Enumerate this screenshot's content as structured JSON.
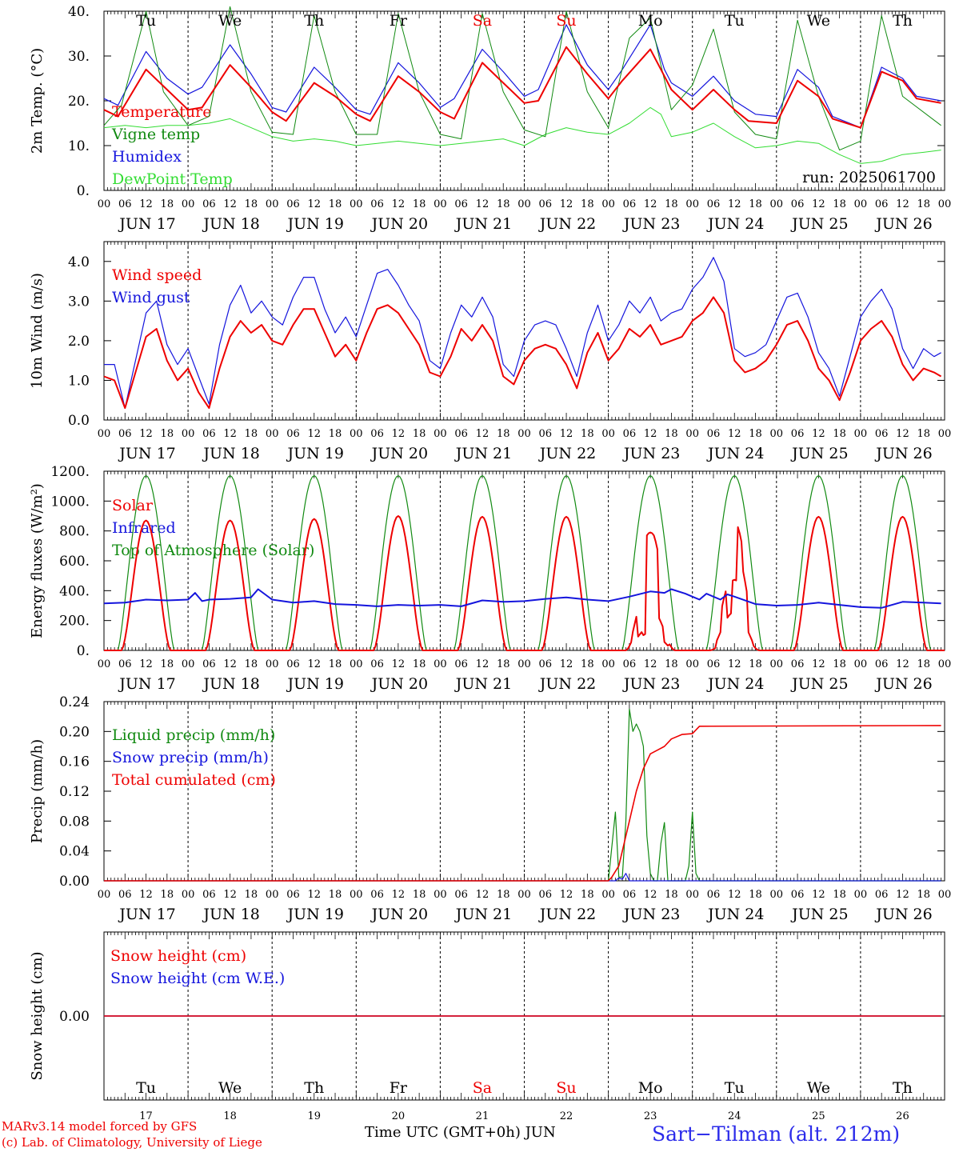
{
  "colors": {
    "red": "#ee0000",
    "green": "#118a11",
    "blue": "#1515dd",
    "light_green": "#33dd33",
    "black": "#000000"
  },
  "days": [
    "Tu",
    "We",
    "Th",
    "Fr",
    "Sa",
    "Su",
    "Mo",
    "Tu",
    "We",
    "Th"
  ],
  "weekend_days": [
    "Sa",
    "Su"
  ],
  "dates": [
    "JUN 17",
    "JUN 18",
    "JUN 19",
    "JUN 20",
    "JUN 21",
    "JUN 22",
    "JUN 23",
    "JUN 24",
    "JUN 25",
    "JUN 26"
  ],
  "date_numbers": [
    "17",
    "18",
    "19",
    "20",
    "21",
    "22",
    "23",
    "24",
    "25",
    "26"
  ],
  "hour_ticks": [
    "00",
    "06",
    "12",
    "18"
  ],
  "run_label": "run: 2025061700",
  "footer": {
    "credit_line1": "MARv3.14 model forced by GFS",
    "credit_line2": "(c) Lab. of Climatology, University of Liege",
    "x_title": "Time UTC (GMT+0h) JUN",
    "station": "Sart−Tilman (alt. 212m)"
  },
  "chart_data": [
    {
      "type": "line",
      "ylabel": "2m Temp. (°C)",
      "ylim": [
        0,
        40
      ],
      "yticks": [
        "0.",
        "10.",
        "20.",
        "30.",
        "40."
      ],
      "x_unit": "hours since JUN 17 00 UTC",
      "legend": [
        "Temperature",
        "Vigne temp",
        "Humidex",
        "DewPoint Temp"
      ],
      "series": [
        {
          "name": "Temperature",
          "color": "red",
          "x": [
            0,
            4,
            12,
            18,
            24,
            28,
            36,
            42,
            48,
            52,
            60,
            66,
            72,
            76,
            84,
            90,
            96,
            100,
            108,
            114,
            120,
            124,
            132,
            138,
            144,
            148,
            156,
            159,
            162,
            168,
            174,
            180,
            184,
            192,
            198,
            204,
            208,
            216,
            222,
            228,
            232,
            239
          ],
          "y": [
            18,
            16.5,
            27,
            22.5,
            18,
            18.5,
            28,
            23,
            17.5,
            15.5,
            24,
            21,
            17,
            15.5,
            25.5,
            22,
            17.5,
            16,
            28.5,
            24,
            19.5,
            20,
            32,
            26,
            20.5,
            24.5,
            31.5,
            27,
            22.5,
            18,
            22.5,
            18,
            15.5,
            15,
            24.5,
            21,
            16,
            14,
            26.5,
            24.5,
            20.5,
            19.5
          ]
        },
        {
          "name": "Vigne temp",
          "color": "green",
          "x": [
            0,
            5,
            12,
            17,
            24,
            30,
            36,
            42,
            48,
            54,
            60,
            66,
            72,
            78,
            84,
            90,
            96,
            102,
            108,
            114,
            120,
            126,
            132,
            138,
            144,
            150,
            156,
            159,
            162,
            168,
            174,
            180,
            186,
            192,
            198,
            204,
            210,
            216,
            222,
            228,
            239
          ],
          "y": [
            14.5,
            19,
            40,
            22,
            14.5,
            16.5,
            41,
            22,
            13,
            12.5,
            39,
            22,
            12.5,
            12.5,
            39.5,
            22,
            12.5,
            11.5,
            39.5,
            22,
            13.5,
            12,
            40,
            22,
            14,
            34,
            38.5,
            28,
            18,
            23.5,
            36,
            17.5,
            12.5,
            11.5,
            38,
            21,
            9,
            11,
            39,
            21,
            14.5
          ]
        },
        {
          "name": "Humidex",
          "color": "blue",
          "x": [
            0,
            4,
            12,
            18,
            24,
            28,
            36,
            42,
            48,
            52,
            60,
            66,
            72,
            76,
            84,
            90,
            96,
            100,
            108,
            114,
            120,
            124,
            132,
            138,
            144,
            148,
            156,
            160,
            162,
            168,
            174,
            180,
            186,
            192,
            198,
            204,
            208,
            216,
            222,
            228,
            232,
            239
          ],
          "y": [
            20.5,
            19,
            31,
            25,
            21.5,
            23,
            32.5,
            26,
            18.5,
            17.5,
            27.5,
            23,
            18,
            17,
            28.5,
            24,
            18.5,
            20.5,
            31.5,
            26.5,
            21,
            22.5,
            37,
            28,
            22.5,
            27,
            37,
            27,
            24,
            21,
            25.5,
            20,
            17,
            16.5,
            27,
            23,
            16.5,
            14,
            27.5,
            25,
            21,
            20
          ]
        },
        {
          "name": "DewPoint Temp",
          "color": "light_green",
          "x": [
            0,
            6,
            12,
            18,
            24,
            30,
            36,
            42,
            48,
            54,
            60,
            66,
            72,
            78,
            84,
            90,
            96,
            102,
            108,
            114,
            120,
            126,
            132,
            138,
            144,
            150,
            156,
            159,
            162,
            168,
            174,
            180,
            186,
            192,
            198,
            204,
            210,
            216,
            222,
            228,
            234,
            239
          ],
          "y": [
            14,
            14.5,
            14,
            14.5,
            14.5,
            15,
            16,
            14,
            12,
            11,
            11.5,
            11,
            10,
            10.5,
            11,
            10.5,
            10,
            10.5,
            11,
            11.5,
            10,
            12.5,
            14,
            13,
            12.5,
            15,
            18.5,
            17,
            12,
            13,
            15,
            12,
            9.5,
            10,
            11,
            10.5,
            8,
            6,
            6.5,
            8,
            8.5,
            9
          ]
        }
      ]
    },
    {
      "type": "line",
      "ylabel": "10m Wind (m/s)",
      "ylim": [
        0,
        4.5
      ],
      "yticks": [
        "0.0",
        "1.0",
        "2.0",
        "3.0",
        "4.0"
      ],
      "legend": [
        "Wind speed",
        "Wind gust"
      ],
      "series": [
        {
          "name": "Wind speed",
          "color": "red",
          "x": [
            0,
            3,
            6,
            9,
            12,
            15,
            18,
            21,
            24,
            27,
            30,
            33,
            36,
            39,
            42,
            45,
            48,
            51,
            54,
            57,
            60,
            63,
            66,
            69,
            72,
            75,
            78,
            81,
            84,
            87,
            90,
            93,
            96,
            99,
            102,
            105,
            108,
            111,
            114,
            117,
            120,
            123,
            126,
            129,
            132,
            135,
            138,
            141,
            144,
            147,
            150,
            153,
            156,
            159,
            162,
            165,
            168,
            171,
            174,
            177,
            180,
            183,
            186,
            189,
            192,
            195,
            198,
            201,
            204,
            207,
            210,
            213,
            216,
            219,
            222,
            225,
            228,
            231,
            234,
            237,
            239
          ],
          "y": [
            1.1,
            1.0,
            0.3,
            1.2,
            2.1,
            2.3,
            1.5,
            1.0,
            1.3,
            0.7,
            0.3,
            1.3,
            2.1,
            2.5,
            2.2,
            2.4,
            2.0,
            1.9,
            2.4,
            2.8,
            2.8,
            2.2,
            1.6,
            1.9,
            1.5,
            2.2,
            2.8,
            2.9,
            2.7,
            2.3,
            1.9,
            1.2,
            1.1,
            1.6,
            2.3,
            2.0,
            2.4,
            2.0,
            1.1,
            0.9,
            1.5,
            1.8,
            1.9,
            1.8,
            1.4,
            0.8,
            1.7,
            2.2,
            1.5,
            1.8,
            2.3,
            2.1,
            2.4,
            1.9,
            2.0,
            2.1,
            2.5,
            2.7,
            3.1,
            2.7,
            1.5,
            1.2,
            1.3,
            1.5,
            1.9,
            2.4,
            2.5,
            2.0,
            1.3,
            1.0,
            0.5,
            1.2,
            2.0,
            2.3,
            2.5,
            2.1,
            1.4,
            1.0,
            1.3,
            1.2,
            1.1
          ]
        },
        {
          "name": "Wind gust",
          "color": "blue",
          "x": [
            0,
            3,
            6,
            9,
            12,
            15,
            18,
            21,
            24,
            27,
            30,
            33,
            36,
            39,
            42,
            45,
            48,
            51,
            54,
            57,
            60,
            63,
            66,
            69,
            72,
            75,
            78,
            81,
            84,
            87,
            90,
            93,
            96,
            99,
            102,
            105,
            108,
            111,
            114,
            117,
            120,
            123,
            126,
            129,
            132,
            135,
            138,
            141,
            144,
            147,
            150,
            153,
            156,
            159,
            162,
            165,
            168,
            171,
            174,
            177,
            180,
            183,
            186,
            189,
            192,
            195,
            198,
            201,
            204,
            207,
            210,
            213,
            216,
            219,
            222,
            225,
            228,
            231,
            234,
            237,
            239
          ],
          "y": [
            1.4,
            1.4,
            0.3,
            1.5,
            2.7,
            3.0,
            1.9,
            1.4,
            1.8,
            1.1,
            0.4,
            1.9,
            2.9,
            3.4,
            2.7,
            3.0,
            2.6,
            2.4,
            3.1,
            3.6,
            3.6,
            2.8,
            2.2,
            2.6,
            2.1,
            2.9,
            3.7,
            3.8,
            3.4,
            2.9,
            2.5,
            1.5,
            1.3,
            2.2,
            2.9,
            2.6,
            3.1,
            2.6,
            1.4,
            1.1,
            2.0,
            2.4,
            2.5,
            2.4,
            1.8,
            1.1,
            2.2,
            2.9,
            2.0,
            2.4,
            3.0,
            2.7,
            3.1,
            2.5,
            2.7,
            2.8,
            3.3,
            3.6,
            4.1,
            3.5,
            1.8,
            1.6,
            1.7,
            1.9,
            2.5,
            3.1,
            3.2,
            2.6,
            1.7,
            1.3,
            0.6,
            1.6,
            2.6,
            3.0,
            3.3,
            2.8,
            1.8,
            1.3,
            1.8,
            1.6,
            1.7
          ]
        }
      ]
    },
    {
      "type": "line",
      "ylabel": "Energy fluxes (W/m²)",
      "ylim": [
        0,
        1200
      ],
      "yticks": [
        "0.",
        "200.",
        "400.",
        "600.",
        "800.",
        "1000.",
        "1200."
      ],
      "legend": [
        "Solar",
        "Infrared",
        "Top of Atmosphere (Solar)"
      ],
      "solar_peaks": [
        870,
        870,
        880,
        900,
        895,
        895,
        800,
        860,
        895,
        895
      ],
      "toa_peak": 1170,
      "infrared": {
        "x": [
          0,
          6,
          12,
          18,
          24,
          26,
          28,
          30,
          36,
          42,
          44,
          48,
          54,
          60,
          66,
          72,
          78,
          84,
          90,
          96,
          102,
          108,
          114,
          120,
          126,
          132,
          138,
          144,
          150,
          156,
          160,
          162,
          166,
          168,
          170,
          172,
          174,
          176,
          178,
          180,
          186,
          192,
          198,
          204,
          210,
          216,
          222,
          228,
          234,
          239
        ],
        "y": [
          315,
          320,
          340,
          335,
          340,
          385,
          330,
          340,
          345,
          355,
          410,
          340,
          320,
          330,
          310,
          305,
          295,
          305,
          300,
          305,
          295,
          335,
          325,
          330,
          345,
          355,
          340,
          330,
          360,
          395,
          385,
          410,
          380,
          360,
          340,
          380,
          360,
          340,
          375,
          360,
          310,
          300,
          305,
          320,
          305,
          290,
          285,
          325,
          320,
          315
        ]
      }
    },
    {
      "type": "line",
      "ylabel": "Precip (mm/h)",
      "ylim": [
        0,
        0.24
      ],
      "yticks": [
        "0.00",
        "0.04",
        "0.08",
        "0.12",
        "0.16",
        "0.20",
        "0.24"
      ],
      "legend": [
        "Liquid precip (mm/h)",
        "Snow precip (mm/h)",
        "Total cumulated (cm)"
      ],
      "series": [
        {
          "name": "Liquid precip (mm/h)",
          "color": "green",
          "x": [
            0,
            143,
            144,
            146,
            147,
            148,
            149,
            150,
            151,
            152,
            153,
            154,
            155,
            156,
            157,
            158,
            159,
            160,
            161,
            162,
            163,
            164,
            165,
            166,
            167,
            168,
            169,
            170,
            171,
            172,
            173,
            174,
            239
          ],
          "y": [
            0,
            0,
            0,
            0.092,
            0.005,
            0.005,
            0.08,
            0.23,
            0.2,
            0.21,
            0.2,
            0.18,
            0.06,
            0.01,
            0.0,
            0.0,
            0.05,
            0.078,
            0.0,
            0.0,
            0.0,
            0.0,
            0.0,
            0.0,
            0.02,
            0.092,
            0.01,
            0,
            0,
            0,
            0,
            0,
            0
          ]
        },
        {
          "name": "Snow precip (mm/h)",
          "color": "blue",
          "x": [
            0,
            146,
            147,
            148,
            149,
            150,
            151,
            239
          ],
          "y": [
            0,
            0,
            0.004,
            0.002,
            0.01,
            0.0,
            0,
            0
          ]
        },
        {
          "name": "Total cumulated (cm)",
          "color": "red",
          "x": [
            0,
            144,
            145,
            147,
            150,
            152,
            154,
            156,
            158,
            160,
            162,
            165,
            168,
            170,
            239
          ],
          "y": [
            0,
            0,
            0.005,
            0.02,
            0.08,
            0.12,
            0.15,
            0.17,
            0.175,
            0.18,
            0.19,
            0.196,
            0.197,
            0.207,
            0.208
          ]
        }
      ]
    },
    {
      "type": "line",
      "ylabel": "Snow height (cm)",
      "yticks": [
        "0.00"
      ],
      "legend": [
        "Snow height (cm)",
        "Snow height (cm W.E.)"
      ],
      "series": [
        {
          "name": "Snow height (cm)",
          "color": "red",
          "x": [
            0,
            239
          ],
          "y": [
            0,
            0
          ]
        },
        {
          "name": "Snow height (cm W.E.)",
          "color": "blue",
          "x": [
            0,
            239
          ],
          "y": [
            0,
            0
          ]
        }
      ]
    }
  ]
}
